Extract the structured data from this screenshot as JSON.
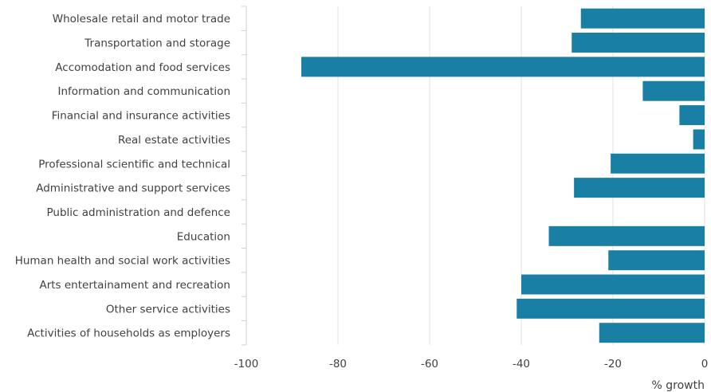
{
  "chart_data": {
    "type": "bar",
    "orientation": "horizontal",
    "categories": [
      "Wholesale retail and motor trade",
      "Transportation and storage",
      "Accomodation and food services",
      "Information and communication",
      "Financial and insurance activities",
      "Real estate activities",
      "Professional scientific and technical",
      "Administrative and support services",
      "Public administration and defence",
      "Education",
      "Human health and social work activities",
      "Arts entertainament and recreation",
      "Other service activities",
      "Activities of households as employers"
    ],
    "values": [
      -27,
      -29,
      -88,
      -13.5,
      -5.5,
      -2.5,
      -20.5,
      -28.5,
      0,
      -34,
      -21,
      -40,
      -41,
      -23
    ],
    "xlim": [
      -100,
      0
    ],
    "xticks": [
      "-100",
      "-80",
      "-60",
      "-40",
      "-20",
      "0"
    ],
    "xtick_values": [
      -100,
      -80,
      -60,
      -40,
      -20,
      0
    ],
    "xlabel": "% growth",
    "ylabel": "",
    "title": "",
    "grid": "vertical",
    "bar_color": "#1a7fa5",
    "grid_color": "#e0e0e0",
    "text_color": "#414042"
  }
}
